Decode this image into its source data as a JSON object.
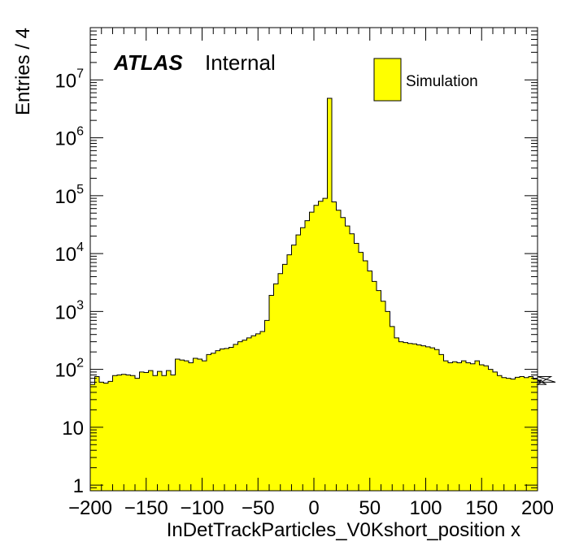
{
  "chart_data": {
    "type": "bar",
    "style": "histogram-step",
    "atlas_label": "ATLAS",
    "status_label": "Internal",
    "xlabel": "InDetTrackParticles_V0Kshort_position x",
    "ylabel": "Entries / 4",
    "xlim": [
      -200,
      200
    ],
    "ylim": [
      0.8,
      80000000
    ],
    "yscale": "log",
    "bin_width": 4,
    "fill_color": "#ffff00",
    "line_color": "#000000",
    "legend": {
      "placement": "top-right",
      "entries": [
        {
          "label": "Simulation",
          "color": "#ffff00"
        }
      ]
    },
    "x_ticks": [
      {
        "value": -200,
        "label": "−200"
      },
      {
        "value": -150,
        "label": "−150"
      },
      {
        "value": -100,
        "label": "−100"
      },
      {
        "value": -50,
        "label": "−50"
      },
      {
        "value": 0,
        "label": "0"
      },
      {
        "value": 50,
        "label": "50"
      },
      {
        "value": 100,
        "label": "100"
      },
      {
        "value": 150,
        "label": "150"
      },
      {
        "value": 200,
        "label": "200"
      }
    ],
    "y_ticks": [
      {
        "value": 1,
        "base": "1",
        "exp": ""
      },
      {
        "value": 10,
        "base": "10",
        "exp": ""
      },
      {
        "value": 100,
        "base": "10",
        "exp": "2"
      },
      {
        "value": 1000,
        "base": "10",
        "exp": "3"
      },
      {
        "value": 10000,
        "base": "10",
        "exp": "4"
      },
      {
        "value": 100000,
        "base": "10",
        "exp": "5"
      },
      {
        "value": 1000000,
        "base": "10",
        "exp": "6"
      },
      {
        "value": 10000000,
        "base": "10",
        "exp": "7"
      }
    ],
    "bin_edges_start": -200,
    "values": [
      55,
      75,
      60,
      58,
      62,
      78,
      80,
      82,
      80,
      78,
      70,
      90,
      88,
      95,
      78,
      92,
      78,
      95,
      80,
      150,
      145,
      140,
      130,
      155,
      150,
      140,
      180,
      190,
      210,
      225,
      230,
      240,
      270,
      300,
      320,
      350,
      380,
      410,
      450,
      700,
      1900,
      3000,
      4500,
      6500,
      9500,
      14000,
      21000,
      28000,
      37000,
      52000,
      68000,
      80000,
      90000,
      4800000,
      78000,
      56000,
      42000,
      30000,
      22000,
      15000,
      10500,
      7500,
      5000,
      3300,
      2300,
      1500,
      1000,
      550,
      350,
      300,
      290,
      280,
      275,
      265,
      255,
      245,
      235,
      220,
      180,
      140,
      130,
      135,
      130,
      140,
      130,
      125,
      140,
      120,
      115,
      100,
      90,
      78,
      72,
      70,
      68,
      73,
      75,
      72,
      75,
      68,
      60,
      65,
      55,
      75,
      60
    ]
  }
}
